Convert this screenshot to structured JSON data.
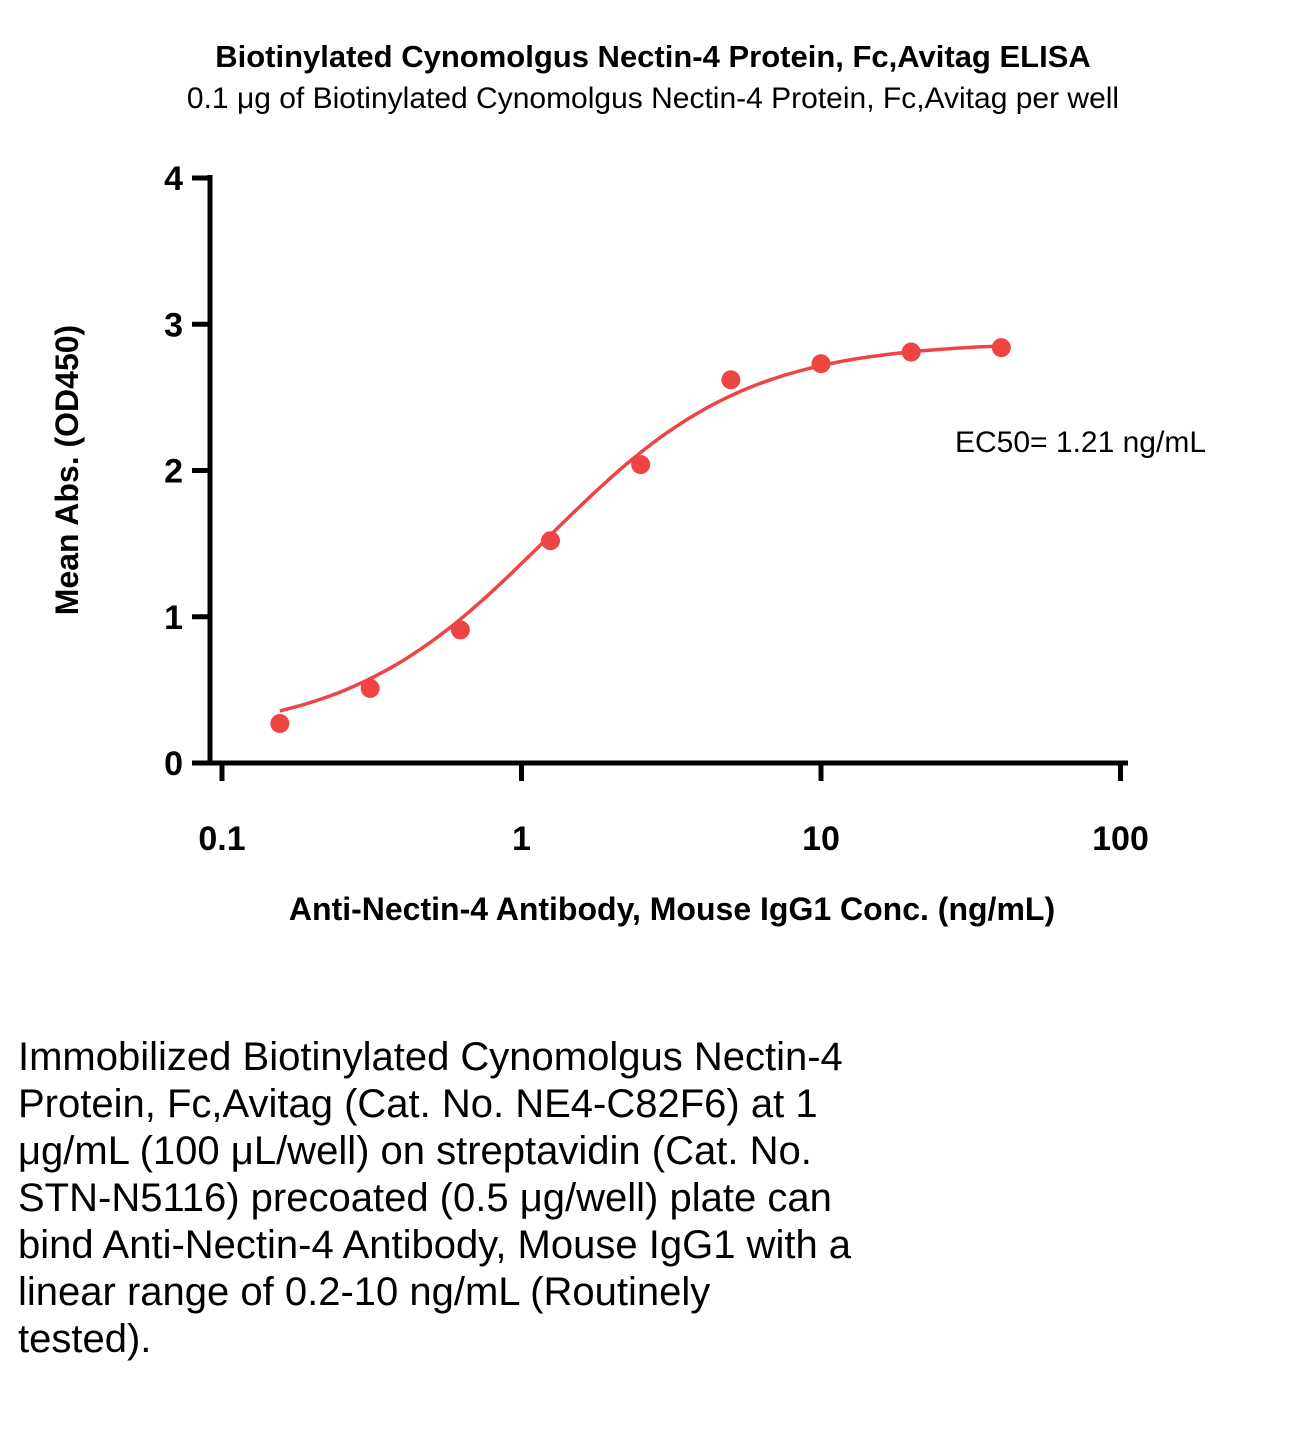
{
  "chart_data": {
    "type": "scatter",
    "title": "Biotinylated Cynomolgus Nectin-4 Protein, Fc,Avitag ELISA",
    "subtitle": "0.1 μg of Biotinylated Cynomolgus Nectin-4 Protein, Fc,Avitag per well",
    "xlabel": "Anti-Nectin-4 Antibody, Mouse IgG1 Conc. (ng/mL)",
    "ylabel": "Mean Abs. (OD450)",
    "x_scale": "log10",
    "xlim": [
      0.1,
      100
    ],
    "ylim": [
      0,
      4
    ],
    "x_ticks": [
      0.1,
      1,
      10,
      100
    ],
    "x_tick_labels": [
      "0.1",
      "1",
      "10",
      "100"
    ],
    "y_ticks": [
      0,
      1,
      2,
      3,
      4
    ],
    "grid": false,
    "legend": "none",
    "marker_color": "#EF4444",
    "line_color": "#EF4444",
    "axis_color": "#000000",
    "series": [
      {
        "name": "Anti-Nectin-4 Antibody, Mouse IgG1",
        "x": [
          0.156,
          0.3125,
          0.625,
          1.25,
          2.5,
          5,
          10,
          20,
          40
        ],
        "y": [
          0.27,
          0.51,
          0.91,
          1.52,
          2.04,
          2.62,
          2.73,
          2.81,
          2.84
        ]
      }
    ],
    "fit": {
      "model": "4PL",
      "bottom": 0.18,
      "top": 2.88,
      "hill": 1.3,
      "ec50": 1.21,
      "x_range": [
        0.156,
        40
      ]
    },
    "annotation": "EC50= 1.21 ng/mL"
  },
  "caption": "Immobilized Biotinylated Cynomolgus Nectin-4\nProtein, Fc,Avitag (Cat. No. NE4-C82F6) at 1\nμg/mL (100 μL/well) on streptavidin (Cat. No.\nSTN-N5116) precoated (0.5 μg/well) plate can\nbind Anti-Nectin-4 Antibody, Mouse IgG1 with a\nlinear range of 0.2-10 ng/mL (Routinely\ntested)."
}
